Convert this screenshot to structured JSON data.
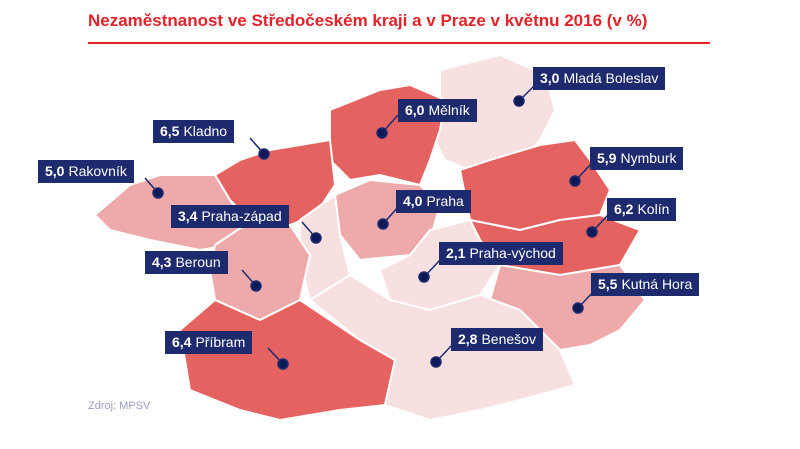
{
  "title": "Nezaměstnanost ve Středočeském kraji a v Praze v květnu 2016 (v %)",
  "source": "Zdroj: MPSV",
  "colors": {
    "title": "#e1232a",
    "label_bg": "#1e2a6e",
    "high": "#e4625f",
    "mid": "#eeaaaa",
    "low": "#f6e0e0"
  },
  "districts": [
    {
      "name": "Mladá Boleslav",
      "value": "3,0"
    },
    {
      "name": "Mělník",
      "value": "6,0"
    },
    {
      "name": "Kladno",
      "value": "6,5"
    },
    {
      "name": "Rakovník",
      "value": "5,0"
    },
    {
      "name": "Nymburk",
      "value": "5,9"
    },
    {
      "name": "Praha-západ",
      "value": "3,4"
    },
    {
      "name": "Praha",
      "value": "4,0"
    },
    {
      "name": "Kolín",
      "value": "6,2"
    },
    {
      "name": "Beroun",
      "value": "4,3"
    },
    {
      "name": "Praha-východ",
      "value": "2,1"
    },
    {
      "name": "Kutná Hora",
      "value": "5,5"
    },
    {
      "name": "Příbram",
      "value": "6,4"
    },
    {
      "name": "Benešov",
      "value": "2,8"
    }
  ]
}
